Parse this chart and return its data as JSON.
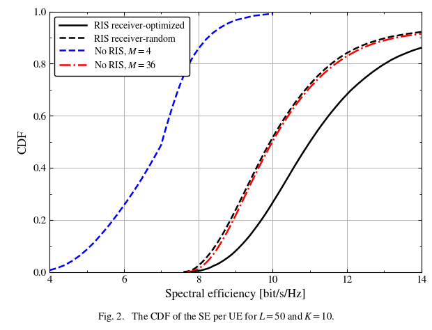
{
  "title": "",
  "xlabel": "Spectral efficiency [bit/s/Hz]",
  "ylabel": "CDF",
  "caption": "Fig. 2.   The CDF of the SE per UE for $L = 50$ and $K = 10$.",
  "xlim": [
    4,
    14
  ],
  "ylim": [
    0,
    1
  ],
  "xticks": [
    4,
    6,
    8,
    10,
    12,
    14
  ],
  "yticks": [
    0,
    0.2,
    0.4,
    0.6,
    0.8,
    1.0
  ],
  "legend": [
    {
      "label": "RIS receiver-optimized",
      "color": "#000000",
      "linestyle": "solid",
      "linewidth": 1.8
    },
    {
      "label": "RIS receiver-random",
      "color": "#000000",
      "linestyle": "dashed",
      "linewidth": 1.8
    },
    {
      "label": "No RIS, $M = 4$",
      "color": "#0000FF",
      "linestyle": "dashed",
      "linewidth": 1.8
    },
    {
      "label": "No RIS, $M = 36$",
      "color": "#FF0000",
      "linestyle": "dashdot",
      "linewidth": 1.8
    }
  ],
  "curves": {
    "ris_optimized": {
      "x": [
        7.8,
        7.85,
        7.9,
        7.95,
        8.0,
        8.05,
        8.1,
        8.15,
        8.2,
        8.25,
        8.3,
        8.35,
        8.4,
        8.5,
        8.6,
        8.7,
        8.8,
        8.9,
        9.0,
        9.1,
        9.2,
        9.3,
        9.4,
        9.5,
        9.6,
        9.7,
        9.8,
        9.9,
        10.0,
        10.1,
        10.2,
        10.3,
        10.4,
        10.5,
        10.6,
        10.7,
        10.8,
        10.9,
        11.0,
        11.1,
        11.2,
        11.3,
        11.4,
        11.5,
        11.6,
        11.7,
        11.8,
        11.9,
        12.0,
        12.1,
        12.2,
        12.3,
        12.4,
        12.5,
        12.6,
        12.7,
        12.8,
        12.9,
        13.0,
        13.2,
        13.4,
        13.6,
        13.8,
        14.0
      ],
      "y": [
        0.001,
        0.002,
        0.003,
        0.004,
        0.005,
        0.006,
        0.008,
        0.01,
        0.012,
        0.014,
        0.017,
        0.02,
        0.024,
        0.03,
        0.038,
        0.047,
        0.057,
        0.068,
        0.081,
        0.095,
        0.11,
        0.126,
        0.143,
        0.162,
        0.181,
        0.201,
        0.222,
        0.244,
        0.267,
        0.29,
        0.313,
        0.337,
        0.361,
        0.385,
        0.409,
        0.432,
        0.455,
        0.477,
        0.499,
        0.52,
        0.541,
        0.561,
        0.58,
        0.599,
        0.617,
        0.634,
        0.651,
        0.667,
        0.682,
        0.697,
        0.71,
        0.723,
        0.735,
        0.747,
        0.758,
        0.769,
        0.779,
        0.789,
        0.798,
        0.815,
        0.829,
        0.841,
        0.852,
        0.861
      ]
    },
    "ris_random": {
      "x": [
        7.6,
        7.65,
        7.7,
        7.75,
        7.8,
        7.85,
        7.9,
        7.95,
        8.0,
        8.1,
        8.2,
        8.3,
        8.4,
        8.5,
        8.6,
        8.7,
        8.8,
        8.9,
        9.0,
        9.1,
        9.2,
        9.3,
        9.4,
        9.5,
        9.6,
        9.7,
        9.8,
        9.9,
        10.0,
        10.1,
        10.2,
        10.3,
        10.4,
        10.5,
        10.6,
        10.7,
        10.8,
        10.9,
        11.0,
        11.2,
        11.4,
        11.6,
        11.8,
        12.0,
        12.2,
        12.4,
        12.6,
        12.8,
        13.0,
        13.2,
        13.4,
        13.6,
        13.8,
        14.0
      ],
      "y": [
        0.001,
        0.002,
        0.003,
        0.005,
        0.007,
        0.01,
        0.014,
        0.019,
        0.025,
        0.038,
        0.053,
        0.07,
        0.089,
        0.11,
        0.133,
        0.157,
        0.183,
        0.21,
        0.238,
        0.266,
        0.295,
        0.324,
        0.353,
        0.382,
        0.41,
        0.438,
        0.465,
        0.491,
        0.516,
        0.541,
        0.564,
        0.587,
        0.608,
        0.629,
        0.649,
        0.668,
        0.686,
        0.703,
        0.72,
        0.751,
        0.778,
        0.802,
        0.823,
        0.841,
        0.856,
        0.869,
        0.88,
        0.889,
        0.897,
        0.904,
        0.909,
        0.914,
        0.918,
        0.922
      ]
    },
    "no_ris_m4": {
      "x": [
        4.0,
        4.2,
        4.4,
        4.6,
        4.8,
        5.0,
        5.2,
        5.4,
        5.6,
        5.8,
        6.0,
        6.1,
        6.2,
        6.3,
        6.4,
        6.5,
        6.6,
        6.7,
        6.8,
        6.9,
        7.0,
        7.1,
        7.2,
        7.3,
        7.4,
        7.5,
        7.6,
        7.7,
        7.8,
        7.9,
        8.0,
        8.2,
        8.4,
        8.6,
        8.8,
        9.0,
        9.5,
        10.0
      ],
      "y": [
        0.008,
        0.016,
        0.027,
        0.043,
        0.063,
        0.087,
        0.115,
        0.147,
        0.181,
        0.218,
        0.257,
        0.277,
        0.298,
        0.319,
        0.341,
        0.364,
        0.388,
        0.412,
        0.437,
        0.462,
        0.488,
        0.539,
        0.587,
        0.633,
        0.676,
        0.716,
        0.752,
        0.784,
        0.812,
        0.836,
        0.857,
        0.892,
        0.919,
        0.939,
        0.955,
        0.967,
        0.984,
        0.992
      ]
    },
    "no_ris_m36": {
      "x": [
        7.7,
        7.75,
        7.8,
        7.85,
        7.9,
        7.95,
        8.0,
        8.05,
        8.1,
        8.2,
        8.3,
        8.4,
        8.5,
        8.6,
        8.7,
        8.8,
        8.9,
        9.0,
        9.1,
        9.2,
        9.3,
        9.4,
        9.5,
        9.6,
        9.7,
        9.8,
        9.9,
        10.0,
        10.1,
        10.2,
        10.3,
        10.4,
        10.5,
        10.6,
        10.7,
        10.8,
        10.9,
        11.0,
        11.1,
        11.2,
        11.3,
        11.4,
        11.5,
        11.6,
        11.7,
        11.8,
        11.9,
        12.0,
        12.2,
        12.4,
        12.6,
        12.8,
        13.0,
        13.2,
        13.4,
        13.6,
        13.8,
        14.0
      ],
      "y": [
        0.001,
        0.002,
        0.003,
        0.005,
        0.007,
        0.01,
        0.014,
        0.018,
        0.023,
        0.035,
        0.05,
        0.068,
        0.088,
        0.111,
        0.135,
        0.161,
        0.188,
        0.217,
        0.246,
        0.276,
        0.306,
        0.336,
        0.365,
        0.394,
        0.422,
        0.449,
        0.476,
        0.502,
        0.527,
        0.551,
        0.574,
        0.596,
        0.617,
        0.637,
        0.656,
        0.674,
        0.691,
        0.708,
        0.723,
        0.738,
        0.752,
        0.765,
        0.777,
        0.789,
        0.8,
        0.81,
        0.82,
        0.829,
        0.845,
        0.859,
        0.871,
        0.881,
        0.889,
        0.896,
        0.902,
        0.907,
        0.911,
        0.915
      ]
    }
  },
  "background_color": "#ffffff",
  "grid_color": "#b0b0b0",
  "figsize": [
    6.2,
    4.74
  ],
  "dpi": 100
}
